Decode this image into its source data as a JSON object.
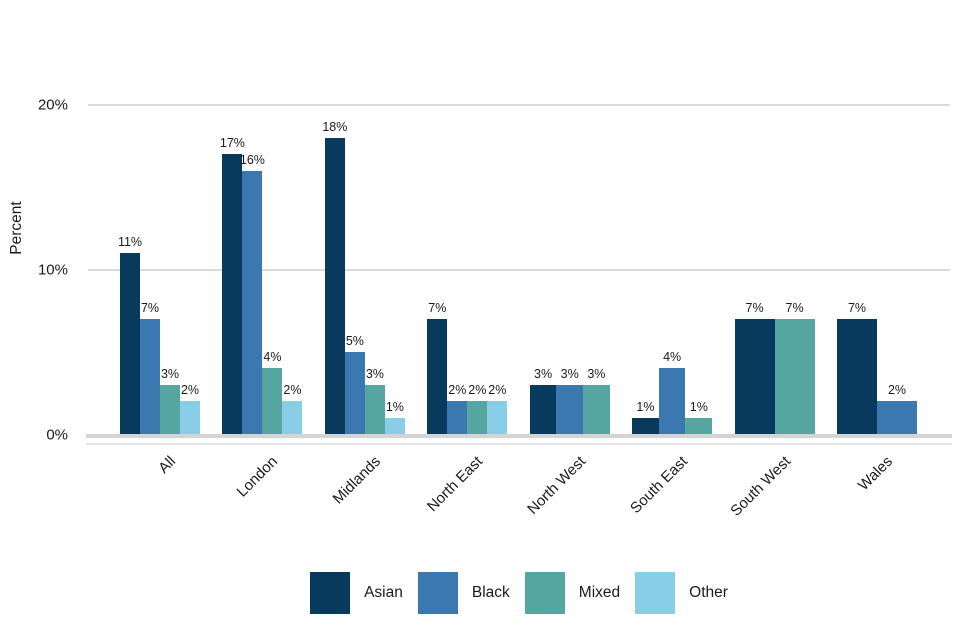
{
  "chart_data": {
    "type": "bar",
    "title": "",
    "ylabel": "Percent",
    "xlabel": "",
    "categories": [
      "All",
      "London",
      "Midlands",
      "North East",
      "North West",
      "South East",
      "South West",
      "Wales"
    ],
    "series": [
      {
        "name": "Asian",
        "color": "#073a5c",
        "values": [
          11,
          17,
          18,
          7,
          3,
          1,
          7,
          7
        ]
      },
      {
        "name": "Black",
        "color": "#3c78b0",
        "values": [
          7,
          16,
          5,
          2,
          3,
          4,
          null,
          2
        ]
      },
      {
        "name": "Mixed",
        "color": "#55a6a1",
        "values": [
          3,
          4,
          3,
          2,
          3,
          1,
          7,
          null
        ]
      },
      {
        "name": "Other",
        "color": "#89cde6",
        "values": [
          2,
          2,
          1,
          2,
          null,
          null,
          null,
          null
        ]
      }
    ],
    "value_label_suffix": "%",
    "yticks": [
      {
        "value": 0,
        "label": "0%"
      },
      {
        "value": 10,
        "label": "10%"
      },
      {
        "value": 20,
        "label": "20%"
      }
    ],
    "ylim": [
      0,
      21
    ],
    "grid": "horizontal",
    "gridline_color": "#d9d9d9",
    "text_color": "#1a1a1a",
    "legend_position": "bottom",
    "legend": [
      "Asian",
      "Black",
      "Mixed",
      "Other"
    ]
  }
}
